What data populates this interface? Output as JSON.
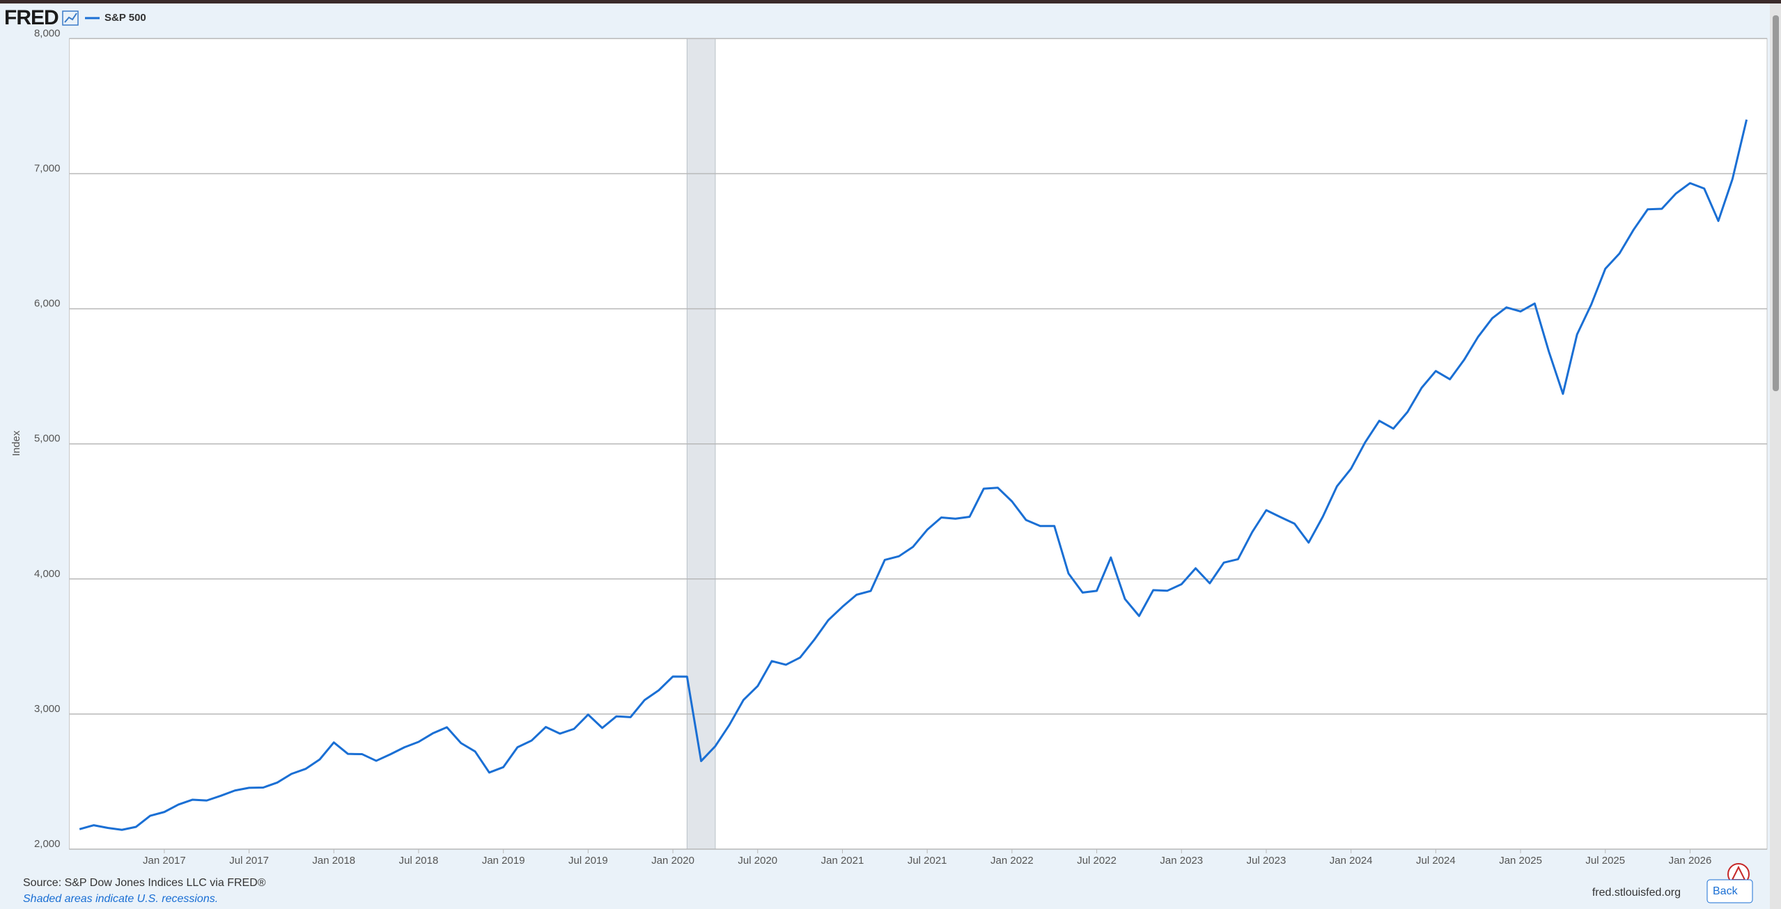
{
  "logo": "FRED",
  "chart_data": {
    "type": "line",
    "y_label": "Index",
    "grid": true,
    "x": [
      "2016-07",
      "2016-08",
      "2016-09",
      "2016-10",
      "2016-11",
      "2016-12",
      "2017-01",
      "2017-02",
      "2017-03",
      "2017-04",
      "2017-05",
      "2017-06",
      "2017-07",
      "2017-08",
      "2017-09",
      "2017-10",
      "2017-11",
      "2017-12",
      "2018-01",
      "2018-02",
      "2018-03",
      "2018-04",
      "2018-05",
      "2018-06",
      "2018-07",
      "2018-08",
      "2018-09",
      "2018-10",
      "2018-11",
      "2018-12",
      "2019-01",
      "2019-02",
      "2019-03",
      "2019-04",
      "2019-05",
      "2019-06",
      "2019-07",
      "2019-08",
      "2019-09",
      "2019-10",
      "2019-11",
      "2019-12",
      "2020-01",
      "2020-02",
      "2020-03",
      "2020-04",
      "2020-05",
      "2020-06",
      "2020-07",
      "2020-08",
      "2020-09",
      "2020-10",
      "2020-11",
      "2020-12",
      "2021-01",
      "2021-02",
      "2021-03",
      "2021-04",
      "2021-05",
      "2021-06",
      "2021-07",
      "2021-08",
      "2021-09",
      "2021-10",
      "2021-11",
      "2021-12",
      "2022-01",
      "2022-02",
      "2022-03",
      "2022-04",
      "2022-05",
      "2022-06",
      "2022-07",
      "2022-08",
      "2022-09",
      "2022-10",
      "2022-11",
      "2022-12",
      "2023-01",
      "2023-02",
      "2023-03",
      "2023-04",
      "2023-05",
      "2023-06",
      "2023-07",
      "2023-08",
      "2023-09",
      "2023-10",
      "2023-11",
      "2023-12",
      "2024-01",
      "2024-02",
      "2024-03",
      "2024-04",
      "2024-05",
      "2024-06",
      "2024-07",
      "2024-08",
      "2024-09",
      "2024-10",
      "2024-11",
      "2024-12",
      "2025-01",
      "2025-02",
      "2025-03",
      "2025-04",
      "2025-05",
      "2025-06",
      "2025-07",
      "2025-08",
      "2025-09",
      "2025-10",
      "2025-11",
      "2025-12",
      "2026-01",
      "2026-02",
      "2026-03",
      "2026-04",
      "2026-05"
    ],
    "series": [
      {
        "name": "S&P 500",
        "color": "#1a6fd4",
        "values": [
          2148,
          2177,
          2157,
          2143,
          2165,
          2247,
          2275,
          2330,
          2366,
          2360,
          2395,
          2434,
          2454,
          2456,
          2493,
          2557,
          2594,
          2664,
          2790,
          2705,
          2703,
          2654,
          2702,
          2754,
          2794,
          2857,
          2902,
          2785,
          2723,
          2567,
          2607,
          2754,
          2804,
          2904,
          2855,
          2890,
          2996,
          2897,
          2983,
          2977,
          3104,
          3176,
          3278,
          3277,
          2652,
          2762,
          2920,
          3105,
          3207,
          3392,
          3365,
          3418,
          3549,
          3695,
          3794,
          3883,
          3911,
          4141,
          4168,
          4238,
          4364,
          4455,
          4446,
          4460,
          4668,
          4675,
          4574,
          4436,
          4392,
          4392,
          4041,
          3899,
          3912,
          4159,
          3851,
          3726,
          3917,
          3913,
          3961,
          4079,
          3968,
          4121,
          4146,
          4346,
          4509,
          4458,
          4409,
          4269,
          4460,
          4685,
          4816,
          5011,
          5171,
          5113,
          5236,
          5415,
          5539,
          5478,
          5621,
          5793,
          5930,
          6010,
          5980,
          6039,
          5684,
          5370,
          5810,
          6030,
          6296,
          6409,
          6585,
          6736,
          6740,
          6853,
          6930,
          6890,
          6650,
          6960,
          7400
        ]
      }
    ],
    "xlim": [
      "2016-07",
      "2026-05"
    ],
    "xticks": [
      {
        "value": "2017-01",
        "label": "Jan 2017"
      },
      {
        "value": "2017-07",
        "label": "Jul 2017"
      },
      {
        "value": "2018-01",
        "label": "Jan 2018"
      },
      {
        "value": "2018-07",
        "label": "Jul 2018"
      },
      {
        "value": "2019-01",
        "label": "Jan 2019"
      },
      {
        "value": "2019-07",
        "label": "Jul 2019"
      },
      {
        "value": "2020-01",
        "label": "Jan 2020"
      },
      {
        "value": "2020-07",
        "label": "Jul 2020"
      },
      {
        "value": "2021-01",
        "label": "Jan 2021"
      },
      {
        "value": "2021-07",
        "label": "Jul 2021"
      },
      {
        "value": "2022-01",
        "label": "Jan 2022"
      },
      {
        "value": "2022-07",
        "label": "Jul 2022"
      },
      {
        "value": "2023-01",
        "label": "Jan 2023"
      },
      {
        "value": "2023-07",
        "label": "Jul 2023"
      },
      {
        "value": "2024-01",
        "label": "Jan 2024"
      },
      {
        "value": "2024-07",
        "label": "Jul 2024"
      },
      {
        "value": "2025-01",
        "label": "Jan 2025"
      },
      {
        "value": "2025-07",
        "label": "Jul 2025"
      },
      {
        "value": "2026-01",
        "label": "Jan 2026"
      }
    ],
    "ylim": [
      2000,
      8000
    ],
    "yticks": [
      {
        "value": 2000,
        "label": "2,000"
      },
      {
        "value": 3000,
        "label": "3,000"
      },
      {
        "value": 4000,
        "label": "4,000"
      },
      {
        "value": 5000,
        "label": "5,000"
      },
      {
        "value": 6000,
        "label": "6,000"
      },
      {
        "value": 7000,
        "label": "7,000"
      },
      {
        "value": 8000,
        "label": "8,000"
      }
    ],
    "recessions": [
      {
        "start": "2020-02",
        "end": "2020-04"
      }
    ]
  },
  "footer": {
    "source": "Source: S&P Dow Jones Indices LLC via FRED®",
    "note": "Shaded areas indicate U.S. recessions.",
    "site": "fred.stlouisfed.org"
  },
  "nav": {
    "back": "Back"
  }
}
